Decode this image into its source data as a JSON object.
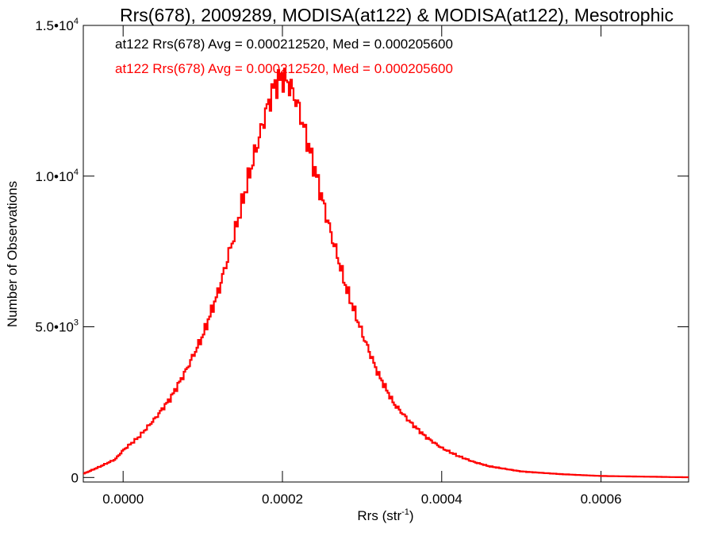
{
  "chart_data": {
    "type": "step",
    "title": "Rrs(678), 2009289, MODISA(at122) & MODISA(at122), Mesotrophic",
    "xlabel_main": "Rrs (str",
    "xlabel_sup": "-1",
    "xlabel_close": ")",
    "ylabel": "Number of Observations",
    "xlim": [
      -5e-05,
      0.00071
    ],
    "ylim": [
      -150,
      15000
    ],
    "x_ticks": [
      {
        "value": 0.0,
        "label": "0.0000"
      },
      {
        "value": 0.0002,
        "label": "0.0002"
      },
      {
        "value": 0.0004,
        "label": "0.0004"
      },
      {
        "value": 0.0006,
        "label": "0.0006"
      }
    ],
    "y_ticks": [
      {
        "value": 0,
        "label": "0",
        "exp": ""
      },
      {
        "value": 5000,
        "label": "5.0•10",
        "exp": "3"
      },
      {
        "value": 10000,
        "label": "1.0•10",
        "exp": "4"
      },
      {
        "value": 15000,
        "label": "1.5•10",
        "exp": "4"
      }
    ],
    "annotations": [
      {
        "text": "at122 Rrs(678) Avg = 0.000212520, Med = 0.000205600",
        "color": "#000000"
      },
      {
        "text": "at122 Rrs(678) Avg = 0.000212520, Med = 0.000205600",
        "color": "#ff0000"
      }
    ],
    "series": [
      {
        "color": "#ff0000",
        "bin_start": -5e-05,
        "bin_width": 2e-06,
        "anchors_x": [
          -5e-05,
          -3e-05,
          -1e-05,
          0.0,
          2e-05,
          4e-05,
          6e-05,
          8e-05,
          0.0001,
          0.00012,
          0.00014,
          0.00016,
          0.00018,
          0.00019,
          0.0002,
          0.00021,
          0.00022,
          0.00024,
          0.00026,
          0.00028,
          0.0003,
          0.00032,
          0.00034,
          0.00036,
          0.00038,
          0.0004,
          0.00042,
          0.00044,
          0.00046,
          0.0005,
          0.00055,
          0.0006,
          0.00065,
          0.0007,
          0.00071
        ],
        "anchors_y": [
          120,
          350,
          600,
          900,
          1350,
          1950,
          2650,
          3600,
          4700,
          6200,
          8100,
          10200,
          12200,
          13000,
          13300,
          13000,
          12300,
          10300,
          8200,
          6300,
          4800,
          3450,
          2450,
          1850,
          1350,
          980,
          720,
          520,
          370,
          200,
          110,
          50,
          30,
          10,
          8
        ]
      }
    ]
  }
}
